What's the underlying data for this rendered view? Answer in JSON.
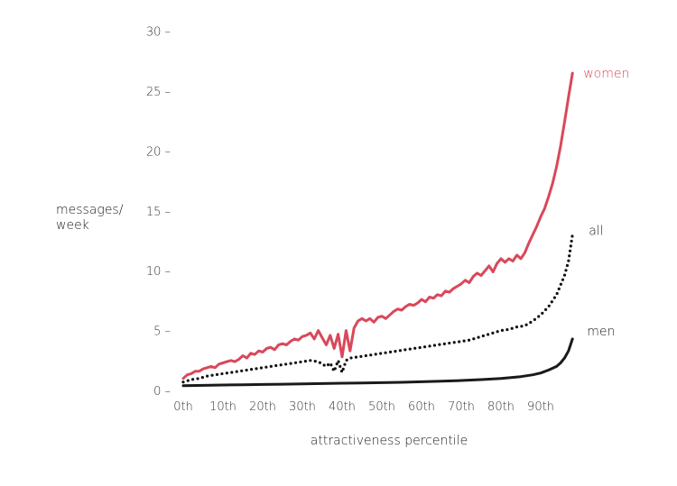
{
  "chart_data": {
    "type": "line",
    "xlabel": "attractiveness percentile",
    "ylabel_line1": "messages/",
    "ylabel_line2": "week",
    "xlim": [
      0,
      99
    ],
    "ylim": [
      0,
      30
    ],
    "x_ticks": [
      {
        "value": 0,
        "label": "0th"
      },
      {
        "value": 10,
        "label": "10th"
      },
      {
        "value": 20,
        "label": "20th"
      },
      {
        "value": 30,
        "label": "30th"
      },
      {
        "value": 40,
        "label": "40th"
      },
      {
        "value": 50,
        "label": "50th"
      },
      {
        "value": 60,
        "label": "60th"
      },
      {
        "value": 70,
        "label": "70th"
      },
      {
        "value": 80,
        "label": "80th"
      },
      {
        "value": 90,
        "label": "90th"
      }
    ],
    "y_ticks": [
      {
        "value": 0,
        "label": "0 –"
      },
      {
        "value": 5,
        "label": "5 –"
      },
      {
        "value": 10,
        "label": "10 –"
      },
      {
        "value": 15,
        "label": "15 –"
      },
      {
        "value": 20,
        "label": "20 –"
      },
      {
        "value": 25,
        "label": "25 –"
      },
      {
        "value": 30,
        "label": "30 –"
      }
    ],
    "grid": false,
    "legend": "direct labels at right end of each line",
    "series": [
      {
        "name": "women",
        "color": "#d9485a",
        "style": "solid",
        "points": [
          [
            0,
            1.0
          ],
          [
            1,
            1.3
          ],
          [
            2,
            1.4
          ],
          [
            3,
            1.6
          ],
          [
            4,
            1.6
          ],
          [
            5,
            1.8
          ],
          [
            6,
            1.9
          ],
          [
            7,
            2.0
          ],
          [
            8,
            1.9
          ],
          [
            9,
            2.2
          ],
          [
            10,
            2.3
          ],
          [
            11,
            2.4
          ],
          [
            12,
            2.5
          ],
          [
            13,
            2.4
          ],
          [
            14,
            2.6
          ],
          [
            15,
            2.9
          ],
          [
            16,
            2.7
          ],
          [
            17,
            3.1
          ],
          [
            18,
            3.0
          ],
          [
            19,
            3.3
          ],
          [
            20,
            3.2
          ],
          [
            21,
            3.5
          ],
          [
            22,
            3.6
          ],
          [
            23,
            3.4
          ],
          [
            24,
            3.8
          ],
          [
            25,
            3.9
          ],
          [
            26,
            3.8
          ],
          [
            27,
            4.1
          ],
          [
            28,
            4.3
          ],
          [
            29,
            4.2
          ],
          [
            30,
            4.5
          ],
          [
            31,
            4.6
          ],
          [
            32,
            4.8
          ],
          [
            33,
            4.3
          ],
          [
            34,
            5.0
          ],
          [
            35,
            4.4
          ],
          [
            36,
            3.8
          ],
          [
            37,
            4.6
          ],
          [
            38,
            3.5
          ],
          [
            39,
            4.7
          ],
          [
            40,
            2.8
          ],
          [
            41,
            5.0
          ],
          [
            42,
            3.3
          ],
          [
            43,
            5.2
          ],
          [
            44,
            5.8
          ],
          [
            45,
            6.0
          ],
          [
            46,
            5.8
          ],
          [
            47,
            6.0
          ],
          [
            48,
            5.7
          ],
          [
            49,
            6.1
          ],
          [
            50,
            6.2
          ],
          [
            51,
            6.0
          ],
          [
            52,
            6.3
          ],
          [
            53,
            6.6
          ],
          [
            54,
            6.8
          ],
          [
            55,
            6.7
          ],
          [
            56,
            7.0
          ],
          [
            57,
            7.2
          ],
          [
            58,
            7.1
          ],
          [
            59,
            7.3
          ],
          [
            60,
            7.6
          ],
          [
            61,
            7.4
          ],
          [
            62,
            7.8
          ],
          [
            63,
            7.7
          ],
          [
            64,
            8.0
          ],
          [
            65,
            7.9
          ],
          [
            66,
            8.3
          ],
          [
            67,
            8.2
          ],
          [
            68,
            8.5
          ],
          [
            69,
            8.7
          ],
          [
            70,
            8.9
          ],
          [
            71,
            9.2
          ],
          [
            72,
            9.0
          ],
          [
            73,
            9.5
          ],
          [
            74,
            9.8
          ],
          [
            75,
            9.6
          ],
          [
            76,
            10.0
          ],
          [
            77,
            10.4
          ],
          [
            78,
            9.9
          ],
          [
            79,
            10.6
          ],
          [
            80,
            11.0
          ],
          [
            81,
            10.7
          ],
          [
            82,
            11.0
          ],
          [
            83,
            10.8
          ],
          [
            84,
            11.3
          ],
          [
            85,
            11.0
          ],
          [
            86,
            11.5
          ],
          [
            87,
            12.3
          ],
          [
            88,
            13.0
          ],
          [
            89,
            13.7
          ],
          [
            90,
            14.5
          ],
          [
            91,
            15.2
          ],
          [
            92,
            16.2
          ],
          [
            93,
            17.3
          ],
          [
            94,
            18.7
          ],
          [
            95,
            20.4
          ],
          [
            96,
            22.4
          ],
          [
            97,
            24.5
          ],
          [
            98,
            26.5
          ]
        ]
      },
      {
        "name": "all",
        "color": "#111111",
        "style": "dotted",
        "points": [
          [
            0,
            0.7
          ],
          [
            2,
            0.9
          ],
          [
            4,
            1.0
          ],
          [
            6,
            1.2
          ],
          [
            8,
            1.3
          ],
          [
            10,
            1.4
          ],
          [
            12,
            1.5
          ],
          [
            14,
            1.6
          ],
          [
            16,
            1.7
          ],
          [
            18,
            1.8
          ],
          [
            20,
            1.9
          ],
          [
            22,
            2.0
          ],
          [
            24,
            2.1
          ],
          [
            26,
            2.2
          ],
          [
            28,
            2.3
          ],
          [
            30,
            2.4
          ],
          [
            32,
            2.5
          ],
          [
            34,
            2.4
          ],
          [
            36,
            2.0
          ],
          [
            37,
            2.3
          ],
          [
            38,
            1.6
          ],
          [
            39,
            2.5
          ],
          [
            40,
            1.5
          ],
          [
            41,
            2.5
          ],
          [
            42,
            2.7
          ],
          [
            44,
            2.8
          ],
          [
            46,
            2.9
          ],
          [
            48,
            3.0
          ],
          [
            50,
            3.1
          ],
          [
            52,
            3.2
          ],
          [
            54,
            3.3
          ],
          [
            56,
            3.4
          ],
          [
            58,
            3.5
          ],
          [
            60,
            3.6
          ],
          [
            62,
            3.7
          ],
          [
            64,
            3.8
          ],
          [
            66,
            3.9
          ],
          [
            68,
            4.0
          ],
          [
            70,
            4.1
          ],
          [
            72,
            4.2
          ],
          [
            74,
            4.4
          ],
          [
            76,
            4.6
          ],
          [
            78,
            4.8
          ],
          [
            80,
            5.0
          ],
          [
            82,
            5.1
          ],
          [
            84,
            5.3
          ],
          [
            86,
            5.4
          ],
          [
            88,
            5.8
          ],
          [
            90,
            6.3
          ],
          [
            92,
            7.0
          ],
          [
            94,
            8.0
          ],
          [
            96,
            9.6
          ],
          [
            97,
            10.8
          ],
          [
            98,
            13.0
          ]
        ]
      },
      {
        "name": "men",
        "color": "#1a1a1a",
        "style": "solid",
        "points": [
          [
            0,
            0.4
          ],
          [
            5,
            0.42
          ],
          [
            10,
            0.45
          ],
          [
            15,
            0.47
          ],
          [
            20,
            0.5
          ],
          [
            25,
            0.52
          ],
          [
            30,
            0.55
          ],
          [
            35,
            0.57
          ],
          [
            40,
            0.6
          ],
          [
            45,
            0.62
          ],
          [
            50,
            0.65
          ],
          [
            55,
            0.68
          ],
          [
            60,
            0.72
          ],
          [
            65,
            0.77
          ],
          [
            70,
            0.83
          ],
          [
            75,
            0.9
          ],
          [
            80,
            1.0
          ],
          [
            85,
            1.15
          ],
          [
            88,
            1.3
          ],
          [
            90,
            1.45
          ],
          [
            92,
            1.7
          ],
          [
            94,
            2.0
          ],
          [
            95,
            2.3
          ],
          [
            96,
            2.7
          ],
          [
            97,
            3.3
          ],
          [
            98,
            4.3
          ]
        ]
      }
    ]
  }
}
